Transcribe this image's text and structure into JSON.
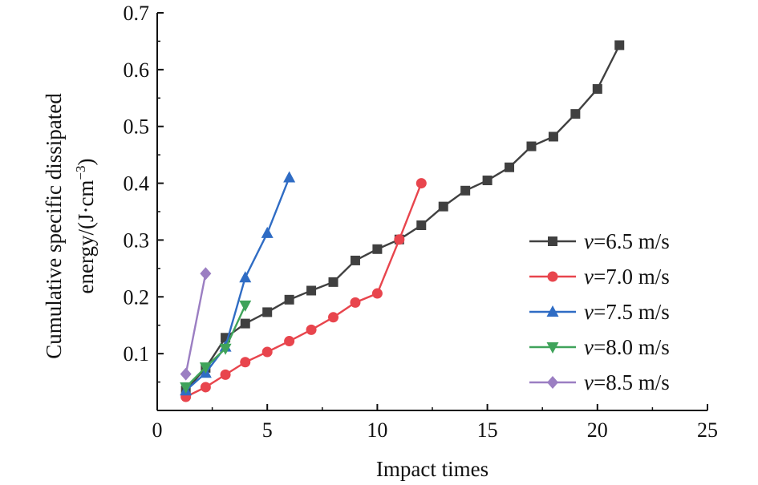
{
  "chart_data": {
    "type": "line",
    "xlabel": "Impact times",
    "ylabel_line1": "Cumulative specific dissipated",
    "ylabel_line2_prefix": "energy/(J·cm",
    "ylabel_line2_sup": "−3",
    "ylabel_line2_suffix": ")",
    "xlim": [
      0,
      25
    ],
    "ylim": [
      0,
      0.7
    ],
    "xticks": [
      0,
      5,
      10,
      15,
      20,
      25
    ],
    "yticks": [
      0.1,
      0.2,
      0.3,
      0.4,
      0.5,
      0.6,
      0.7
    ],
    "xtick_labels": [
      "0",
      "5",
      "10",
      "15",
      "20",
      "25"
    ],
    "ytick_labels": [
      "0.1",
      "0.2",
      "0.3",
      "0.4",
      "0.5",
      "0.6",
      "0.7"
    ],
    "grid": false,
    "legend_position": "bottom-right",
    "series": [
      {
        "name_var": "v",
        "name_rest": "=6.5 m/s",
        "color": "#404040",
        "marker": "square",
        "x": [
          1.3,
          2.2,
          3.1,
          4.0,
          5.0,
          6.0,
          7.0,
          8.0,
          9.0,
          10.0,
          11.0,
          12.0,
          13.0,
          14.0,
          15.0,
          16.0,
          17.0,
          18.0,
          19.0,
          20.0,
          21.0
        ],
        "y": [
          0.035,
          0.075,
          0.128,
          0.153,
          0.173,
          0.195,
          0.211,
          0.226,
          0.264,
          0.284,
          0.301,
          0.326,
          0.359,
          0.387,
          0.405,
          0.428,
          0.465,
          0.482,
          0.522,
          0.566,
          0.643
        ]
      },
      {
        "name_var": "v",
        "name_rest": "=7.0 m/s",
        "color": "#e8454d",
        "marker": "circle",
        "x": [
          1.3,
          2.2,
          3.1,
          4.0,
          5.0,
          6.0,
          7.0,
          8.0,
          9.0,
          10.0,
          11.0,
          12.0
        ],
        "y": [
          0.024,
          0.041,
          0.063,
          0.085,
          0.103,
          0.122,
          0.142,
          0.164,
          0.19,
          0.206,
          0.301,
          0.4
        ]
      },
      {
        "name_var": "v",
        "name_rest": "=7.5 m/s",
        "color": "#2f6cc4",
        "marker": "triangle-up",
        "x": [
          1.3,
          2.2,
          3.1,
          4.0,
          5.0,
          6.0
        ],
        "y": [
          0.035,
          0.066,
          0.112,
          0.234,
          0.312,
          0.41
        ]
      },
      {
        "name_var": "v",
        "name_rest": "=8.0 m/s",
        "color": "#3fa35a",
        "marker": "triangle-down",
        "x": [
          1.3,
          2.2,
          3.1,
          4.0
        ],
        "y": [
          0.041,
          0.076,
          0.109,
          0.185
        ]
      },
      {
        "name_var": "v",
        "name_rest": "=8.5 m/s",
        "color": "#9b7ec2",
        "marker": "diamond",
        "x": [
          1.3,
          2.2
        ],
        "y": [
          0.064,
          0.241
        ]
      }
    ]
  }
}
